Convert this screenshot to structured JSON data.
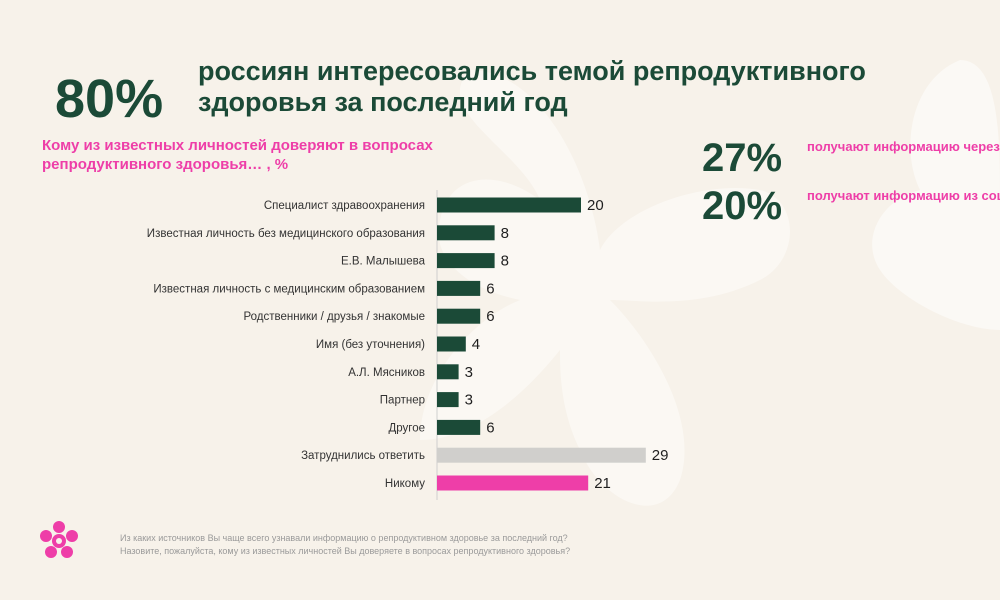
{
  "headline": {
    "stat": "80%",
    "text": "россиян интересовались темой репродуктивного здоровья за последний год"
  },
  "question": "Кому из известных личностей доверяют в вопросах репродуктивного здоровья… , %",
  "side_stats": [
    {
      "value": "27%",
      "text": "получают информацию через поисковые системы"
    },
    {
      "value": "20%",
      "text": "получают информацию из соцсетей"
    }
  ],
  "footnote": {
    "line1": "Из каких источников Вы чаще всего узнавали информацию о репродуктивном здоровье за последний год?",
    "line2": "Назовите, пожалуйста, кому из известных личностей Вы доверяете в вопросах репродуктивного здоровья?"
  },
  "colors": {
    "primary": "#1b4a37",
    "accent": "#ee3ea8",
    "neutral": "#d0cfcc",
    "background": "#f7f2ea"
  },
  "chart_data": {
    "type": "bar",
    "orientation": "horizontal",
    "title": "Кому из известных личностей доверяют в вопросах репродуктивного здоровья… , %",
    "categories": [
      "Специалист здравоохранения",
      "Известная личность без медицинского образования",
      "Е.В. Малышева",
      "Известная личность с медицинским образованием",
      "Родственники / друзья / знакомые",
      "Имя (без уточнения)",
      "А.Л. Мясников",
      "Партнер",
      "Другое",
      "Затруднились ответить",
      "Никому"
    ],
    "values": [
      20,
      8,
      8,
      6,
      6,
      4,
      3,
      3,
      6,
      29,
      21
    ],
    "bar_colors": [
      "#1b4a37",
      "#1b4a37",
      "#1b4a37",
      "#1b4a37",
      "#1b4a37",
      "#1b4a37",
      "#1b4a37",
      "#1b4a37",
      "#1b4a37",
      "#d0cfcc",
      "#ee3ea8"
    ],
    "xlim": [
      0,
      29
    ],
    "grid": false,
    "legend": "none"
  }
}
